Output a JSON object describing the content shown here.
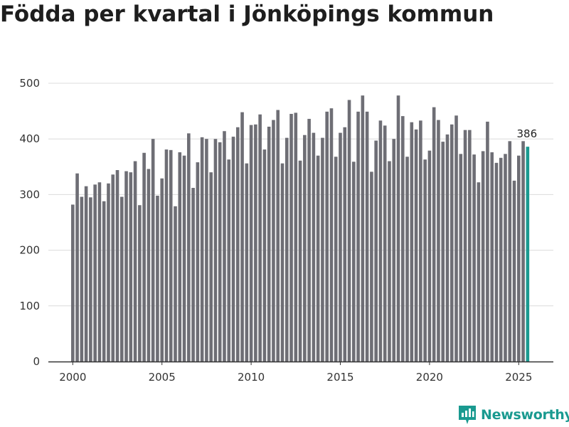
{
  "title": "Födda per kvartal i Jönköpings kommun",
  "brand": {
    "name": "Newsworthy",
    "icon": "newsworthy-logo-icon",
    "color": "#1a9a90"
  },
  "chart_data": {
    "type": "bar",
    "title": "Födda per kvartal i Jönköpings kommun",
    "xlabel": "",
    "ylabel": "",
    "ylim": [
      0,
      500
    ],
    "y_ticks": [
      0,
      100,
      200,
      300,
      400,
      500
    ],
    "x_ticks": [
      "2000",
      "2005",
      "2010",
      "2015",
      "2020",
      "2025"
    ],
    "grid": true,
    "bar_color": "#6e6e75",
    "highlight_color": "#1a9a90",
    "highlight_label": "386",
    "start_year": 2000,
    "categories": [
      "2000 Q1",
      "2000 Q2",
      "2000 Q3",
      "2000 Q4",
      "2001 Q1",
      "2001 Q2",
      "2001 Q3",
      "2001 Q4",
      "2002 Q1",
      "2002 Q2",
      "2002 Q3",
      "2002 Q4",
      "2003 Q1",
      "2003 Q2",
      "2003 Q3",
      "2003 Q4",
      "2004 Q1",
      "2004 Q2",
      "2004 Q3",
      "2004 Q4",
      "2005 Q1",
      "2005 Q2",
      "2005 Q3",
      "2005 Q4",
      "2006 Q1",
      "2006 Q2",
      "2006 Q3",
      "2006 Q4",
      "2007 Q1",
      "2007 Q2",
      "2007 Q3",
      "2007 Q4",
      "2008 Q1",
      "2008 Q2",
      "2008 Q3",
      "2008 Q4",
      "2009 Q1",
      "2009 Q2",
      "2009 Q3",
      "2009 Q4",
      "2010 Q1",
      "2010 Q2",
      "2010 Q3",
      "2010 Q4",
      "2011 Q1",
      "2011 Q2",
      "2011 Q3",
      "2011 Q4",
      "2012 Q1",
      "2012 Q2",
      "2012 Q3",
      "2012 Q4",
      "2013 Q1",
      "2013 Q2",
      "2013 Q3",
      "2013 Q4",
      "2014 Q1",
      "2014 Q2",
      "2014 Q3",
      "2014 Q4",
      "2015 Q1",
      "2015 Q2",
      "2015 Q3",
      "2015 Q4",
      "2016 Q1",
      "2016 Q2",
      "2016 Q3",
      "2016 Q4",
      "2017 Q1",
      "2017 Q2",
      "2017 Q3",
      "2017 Q4",
      "2018 Q1",
      "2018 Q2",
      "2018 Q3",
      "2018 Q4",
      "2019 Q1",
      "2019 Q2",
      "2019 Q3",
      "2019 Q4",
      "2020 Q1",
      "2020 Q2",
      "2020 Q3",
      "2020 Q4",
      "2021 Q1",
      "2021 Q2",
      "2021 Q3",
      "2021 Q4",
      "2022 Q1",
      "2022 Q2",
      "2022 Q3",
      "2022 Q4",
      "2023 Q1",
      "2023 Q2",
      "2023 Q3",
      "2023 Q4",
      "2024 Q1",
      "2024 Q2",
      "2024 Q3",
      "2024 Q4",
      "2025 Q1",
      "2025 Q2",
      "2025 Q3"
    ],
    "values": [
      282,
      338,
      296,
      315,
      295,
      318,
      322,
      288,
      320,
      336,
      344,
      296,
      342,
      340,
      360,
      281,
      375,
      346,
      400,
      298,
      329,
      381,
      380,
      279,
      376,
      370,
      410,
      312,
      358,
      403,
      400,
      340,
      400,
      394,
      414,
      363,
      404,
      421,
      448,
      356,
      425,
      426,
      444,
      381,
      422,
      434,
      452,
      356,
      402,
      445,
      447,
      361,
      407,
      436,
      411,
      370,
      402,
      449,
      455,
      368,
      411,
      421,
      470,
      359,
      449,
      478,
      449,
      341,
      397,
      433,
      424,
      360,
      400,
      478,
      441,
      368,
      430,
      417,
      433,
      363,
      379,
      457,
      434,
      395,
      408,
      426,
      442,
      373,
      416,
      416,
      372,
      322,
      378,
      431,
      376,
      357,
      366,
      373,
      396,
      325,
      370,
      396,
      386
    ]
  }
}
